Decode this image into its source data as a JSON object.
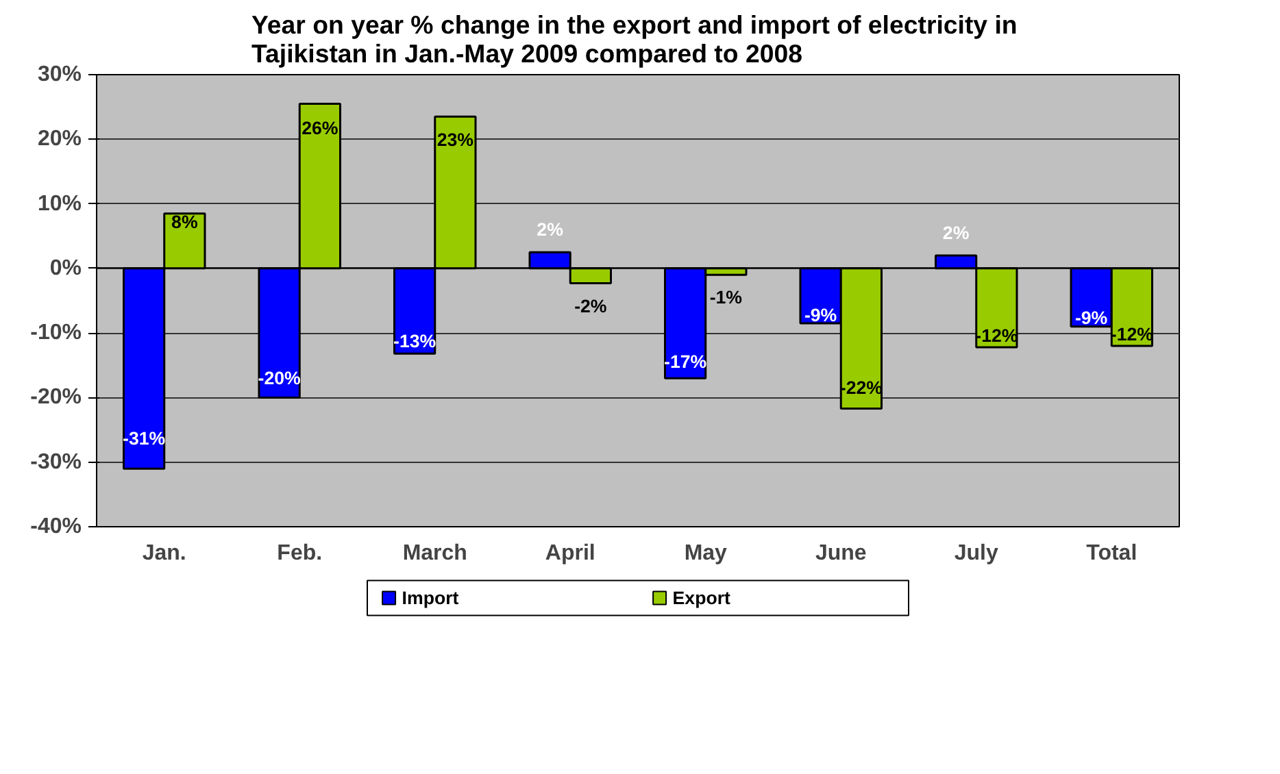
{
  "chart_data": {
    "type": "bar",
    "title": "Year on year % change in the export and import  of electricity in\nTajikistan in Jan.-May 2009 compared to 2008",
    "categories": [
      "Jan.",
      "Feb.",
      "March",
      "April",
      "May",
      "June",
      "July",
      "Total"
    ],
    "series": [
      {
        "name": "Import",
        "color": "#0000ff",
        "values": [
          -31,
          -20,
          -13.2,
          2.5,
          -17,
          -8.5,
          2,
          -9
        ],
        "value_labels": [
          "-31%",
          "-20%",
          "-13%",
          "2%",
          "-17%",
          "-9%",
          "2%",
          "-9%"
        ]
      },
      {
        "name": "Export",
        "color": "#99cc00",
        "values": [
          8.5,
          25.5,
          23.5,
          -2.3,
          -1,
          -21.7,
          -12.2,
          -12
        ],
        "value_labels": [
          "8%",
          "26%",
          "23%",
          "-2%",
          "-1%",
          "-22%",
          "-12%",
          "-12%"
        ]
      }
    ],
    "ylim": [
      -40,
      30
    ],
    "yticks": [
      {
        "value": -40,
        "label": "-40%"
      },
      {
        "value": -30,
        "label": "-30%"
      },
      {
        "value": -20,
        "label": "-20%"
      },
      {
        "value": -10,
        "label": "-10%"
      },
      {
        "value": 0,
        "label": "0%"
      },
      {
        "value": 10,
        "label": "10%"
      },
      {
        "value": 20,
        "label": "20%"
      },
      {
        "value": 30,
        "label": "30%"
      }
    ],
    "grid": "y",
    "legend": "bottom"
  }
}
